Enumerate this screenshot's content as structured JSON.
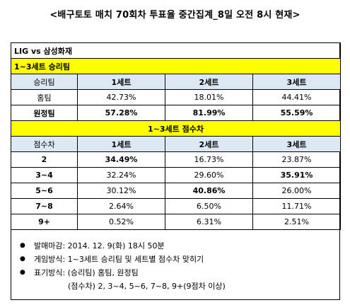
{
  "title": "<배구토토 매치 70회차 투표율 중간집계_8일 오전 8시 현재>",
  "match": "LIG vs 삼성화재",
  "winner_section": {
    "title": "1~3세트 승리팀",
    "columns": [
      "승리팀",
      "1세트",
      "2세트",
      "3세트"
    ],
    "rows": [
      {
        "label": "홈팀",
        "values": [
          "42.73%",
          "18.01%",
          "44.41%"
        ]
      },
      {
        "label": "원정팀",
        "values": [
          "57.28%",
          "81.99%",
          "55.59%"
        ]
      }
    ]
  },
  "score_section": {
    "title": "1~3세트 점수차",
    "columns": [
      "점수차",
      "1세트",
      "2세트",
      "3세트"
    ],
    "rows": [
      {
        "label": "2",
        "values": [
          "34.49%",
          "16.73%",
          "23.87%"
        ]
      },
      {
        "label": "3~4",
        "values": [
          "32.24%",
          "29.60%",
          "35.91%"
        ]
      },
      {
        "label": "5~6",
        "values": [
          "30.12%",
          "40.86%",
          "26.00%"
        ]
      },
      {
        "label": "7~8",
        "values": [
          "2.64%",
          "6.50%",
          "11.71%"
        ]
      },
      {
        "label": "9+",
        "values": [
          "0.52%",
          "6.31%",
          "2.51%"
        ]
      }
    ]
  },
  "notes": [
    "발매마감: 2014. 12. 9(화) 18시 50분",
    "게임방식: 1~3세트 승리팀 및 세트별 점수차 맞히기",
    "표기방식: (승리팀) 홈팀, 원정팀"
  ],
  "notes_continuation": "(점수차) 2, 3~4, 5~6, 7~8, 9+(9점차 이상)"
}
